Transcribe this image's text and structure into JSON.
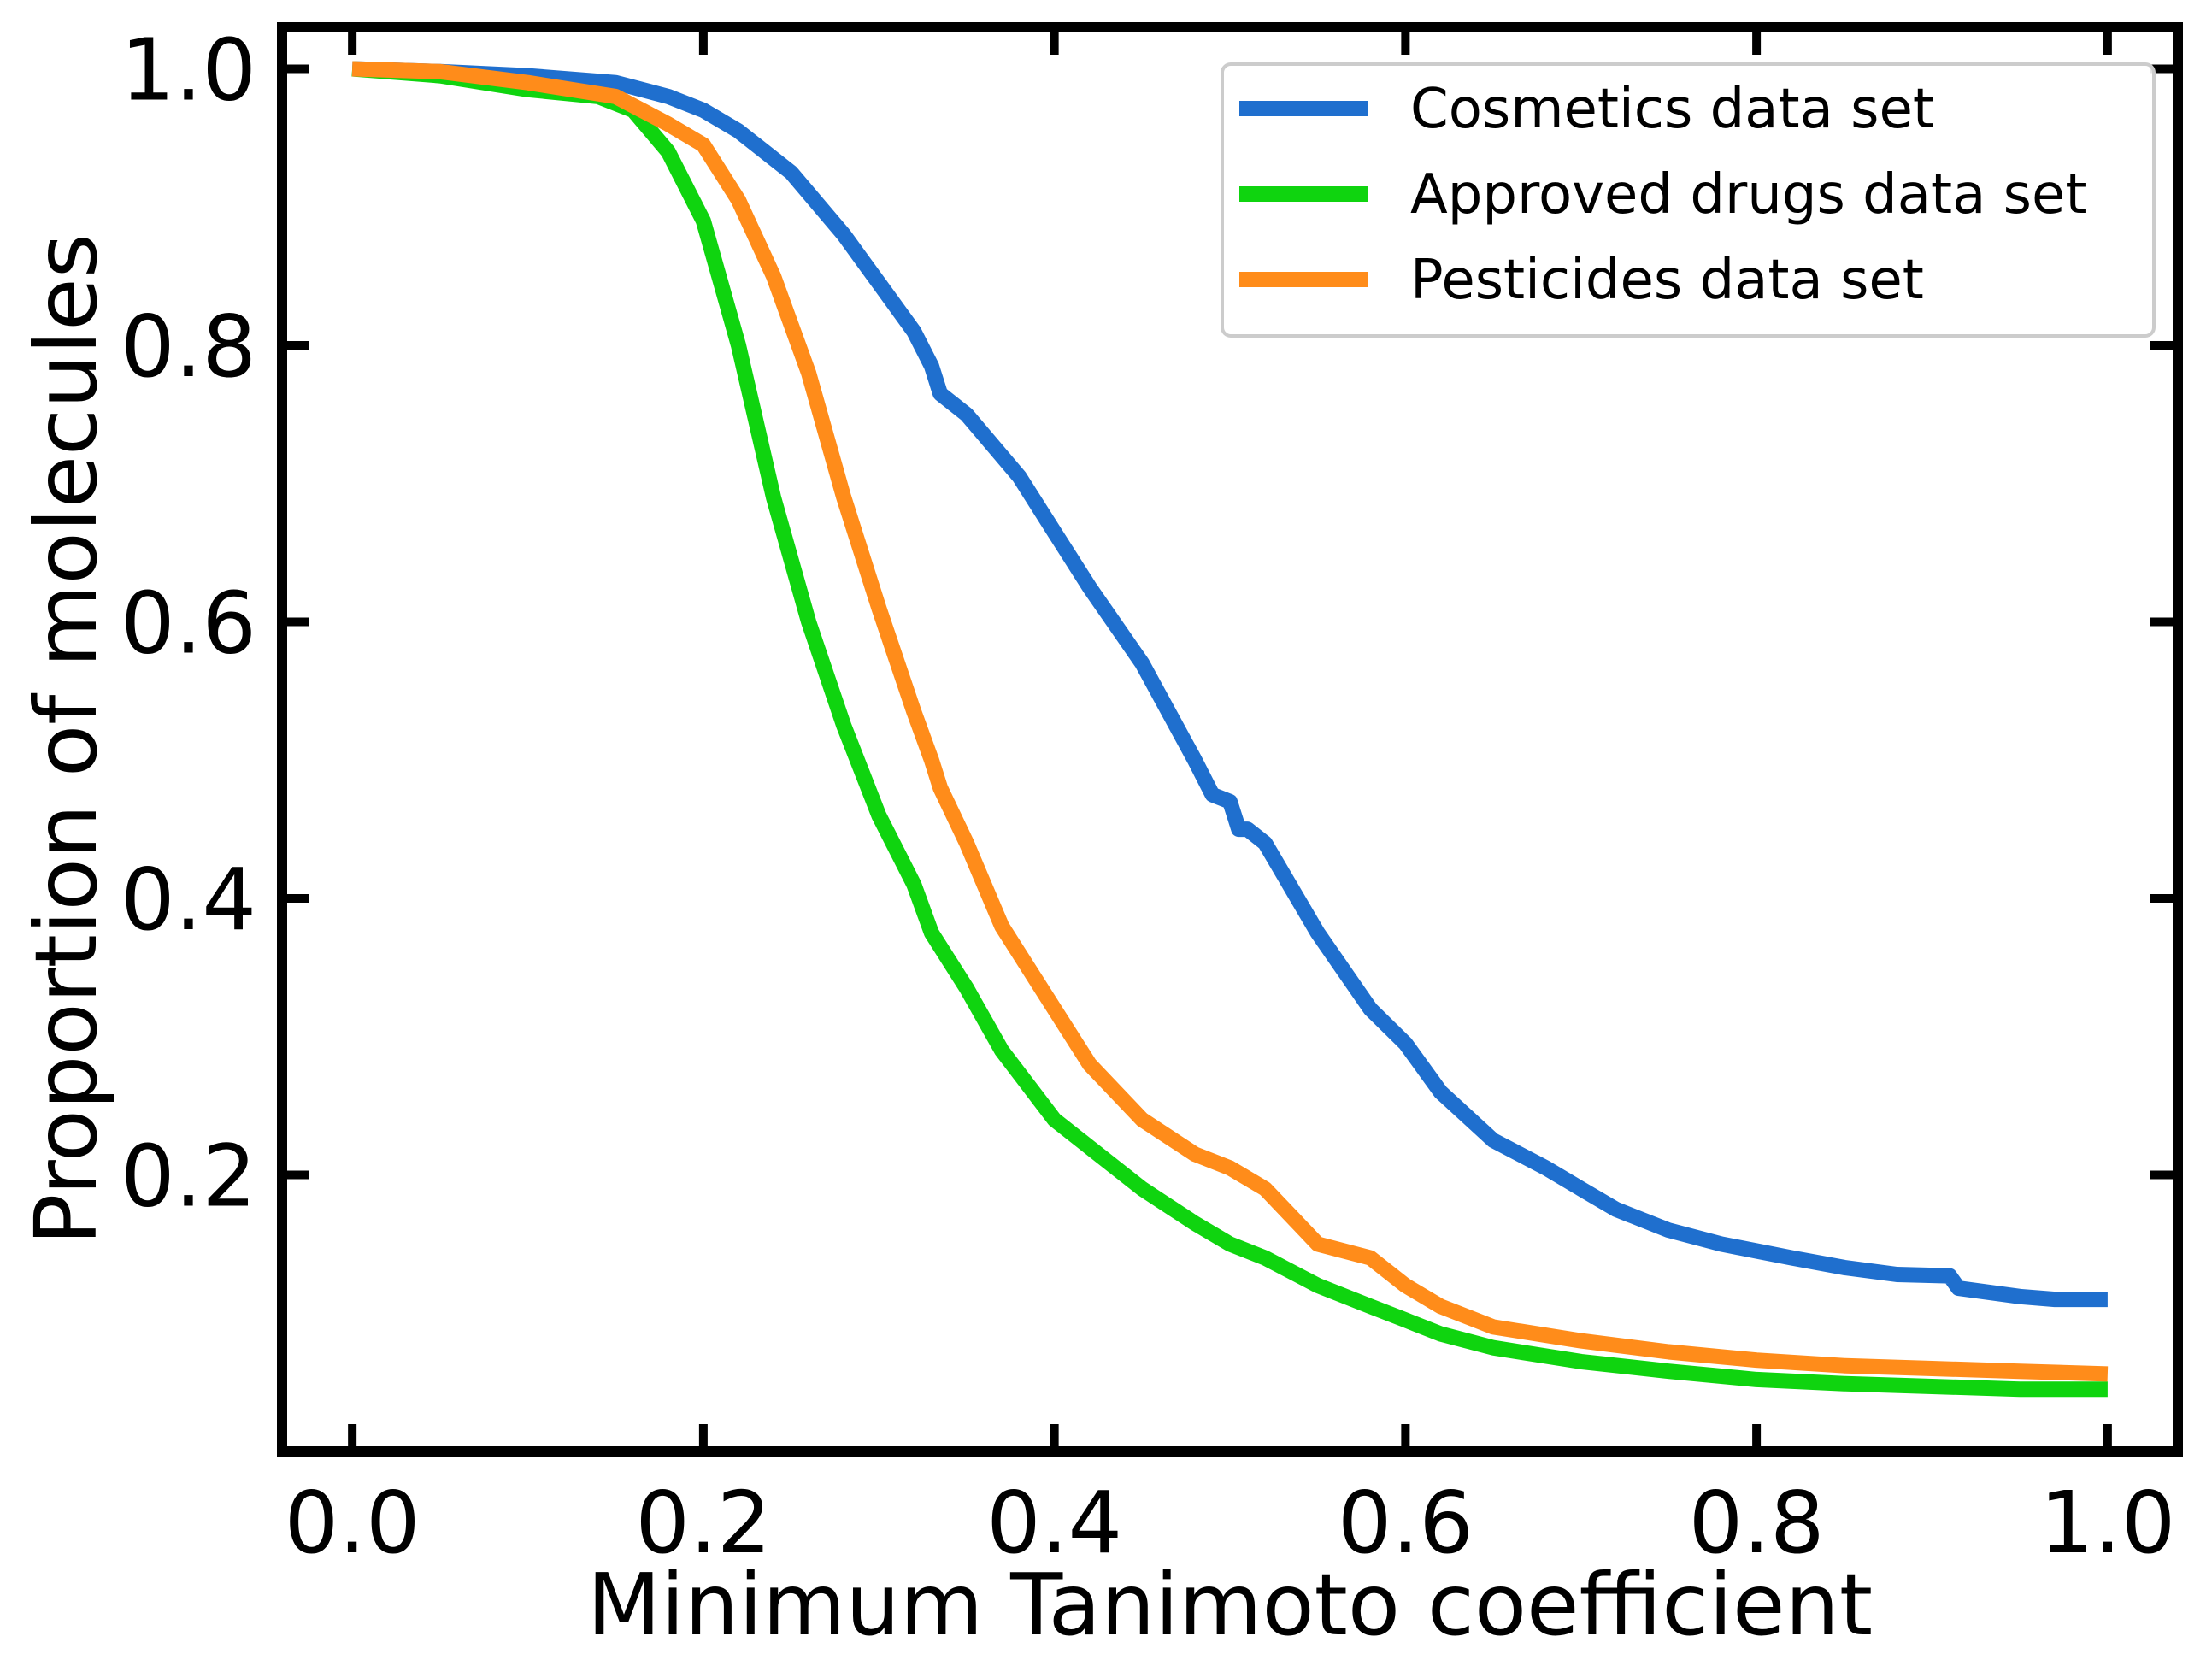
{
  "chart_data": {
    "type": "line",
    "title": "",
    "xlabel": "Minimum Tanimoto coefficient",
    "ylabel": "Proportion of molecules",
    "xlim": [
      -0.04,
      1.04
    ],
    "ylim": [
      0.0,
      1.03
    ],
    "x_ticks": [
      0.0,
      0.2,
      0.4,
      0.6,
      0.8,
      1.0
    ],
    "x_tick_labels": [
      "0.0",
      "0.2",
      "0.4",
      "0.6",
      "0.8",
      "1.0"
    ],
    "y_ticks": [
      0.2,
      0.4,
      0.6,
      0.8,
      1.0
    ],
    "y_tick_labels": [
      "0.2",
      "0.4",
      "0.6",
      "0.8",
      "1.0"
    ],
    "grid": false,
    "legend_position": "top-right",
    "series": [
      {
        "name": "Cosmetics data set",
        "color": "#1f6fce",
        "x": [
          0.0,
          0.05,
          0.1,
          0.15,
          0.18,
          0.2,
          0.22,
          0.25,
          0.28,
          0.3,
          0.32,
          0.33,
          0.335,
          0.35,
          0.38,
          0.4,
          0.42,
          0.45,
          0.48,
          0.49,
          0.5,
          0.505,
          0.51,
          0.52,
          0.55,
          0.58,
          0.6,
          0.62,
          0.65,
          0.68,
          0.7,
          0.72,
          0.75,
          0.78,
          0.8,
          0.82,
          0.85,
          0.88,
          0.91,
          0.915,
          0.95,
          0.97,
          1.0
        ],
        "y": [
          1.0,
          0.998,
          0.995,
          0.99,
          0.98,
          0.97,
          0.955,
          0.925,
          0.88,
          0.845,
          0.81,
          0.785,
          0.765,
          0.75,
          0.705,
          0.665,
          0.625,
          0.57,
          0.5,
          0.475,
          0.47,
          0.45,
          0.45,
          0.44,
          0.375,
          0.32,
          0.295,
          0.26,
          0.225,
          0.205,
          0.19,
          0.175,
          0.16,
          0.15,
          0.145,
          0.14,
          0.133,
          0.128,
          0.127,
          0.118,
          0.112,
          0.11,
          0.11
        ]
      },
      {
        "name": "Approved drugs data set",
        "color": "#0fd40f",
        "x": [
          0.0,
          0.05,
          0.1,
          0.14,
          0.16,
          0.18,
          0.2,
          0.22,
          0.24,
          0.26,
          0.28,
          0.3,
          0.32,
          0.33,
          0.35,
          0.37,
          0.4,
          0.42,
          0.45,
          0.48,
          0.5,
          0.52,
          0.55,
          0.58,
          0.6,
          0.62,
          0.65,
          0.7,
          0.75,
          0.8,
          0.85,
          0.9,
          0.95,
          1.0
        ],
        "y": [
          1.0,
          0.995,
          0.985,
          0.98,
          0.97,
          0.94,
          0.89,
          0.8,
          0.69,
          0.6,
          0.525,
          0.46,
          0.41,
          0.375,
          0.335,
          0.29,
          0.24,
          0.22,
          0.19,
          0.165,
          0.15,
          0.14,
          0.12,
          0.105,
          0.095,
          0.085,
          0.075,
          0.065,
          0.058,
          0.052,
          0.049,
          0.047,
          0.045,
          0.045
        ]
      },
      {
        "name": "Pesticides data set",
        "color": "#ff8c1a",
        "x": [
          0.0,
          0.05,
          0.1,
          0.15,
          0.18,
          0.2,
          0.22,
          0.24,
          0.26,
          0.28,
          0.3,
          0.32,
          0.33,
          0.335,
          0.35,
          0.37,
          0.4,
          0.42,
          0.45,
          0.48,
          0.5,
          0.52,
          0.55,
          0.58,
          0.6,
          0.62,
          0.65,
          0.7,
          0.75,
          0.8,
          0.85,
          0.9,
          0.95,
          1.0
        ],
        "y": [
          1.0,
          0.998,
          0.99,
          0.98,
          0.96,
          0.945,
          0.905,
          0.85,
          0.78,
          0.69,
          0.61,
          0.535,
          0.5,
          0.48,
          0.44,
          0.38,
          0.32,
          0.28,
          0.24,
          0.215,
          0.205,
          0.19,
          0.15,
          0.14,
          0.12,
          0.105,
          0.09,
          0.08,
          0.072,
          0.066,
          0.062,
          0.06,
          0.058,
          0.056
        ]
      }
    ]
  }
}
